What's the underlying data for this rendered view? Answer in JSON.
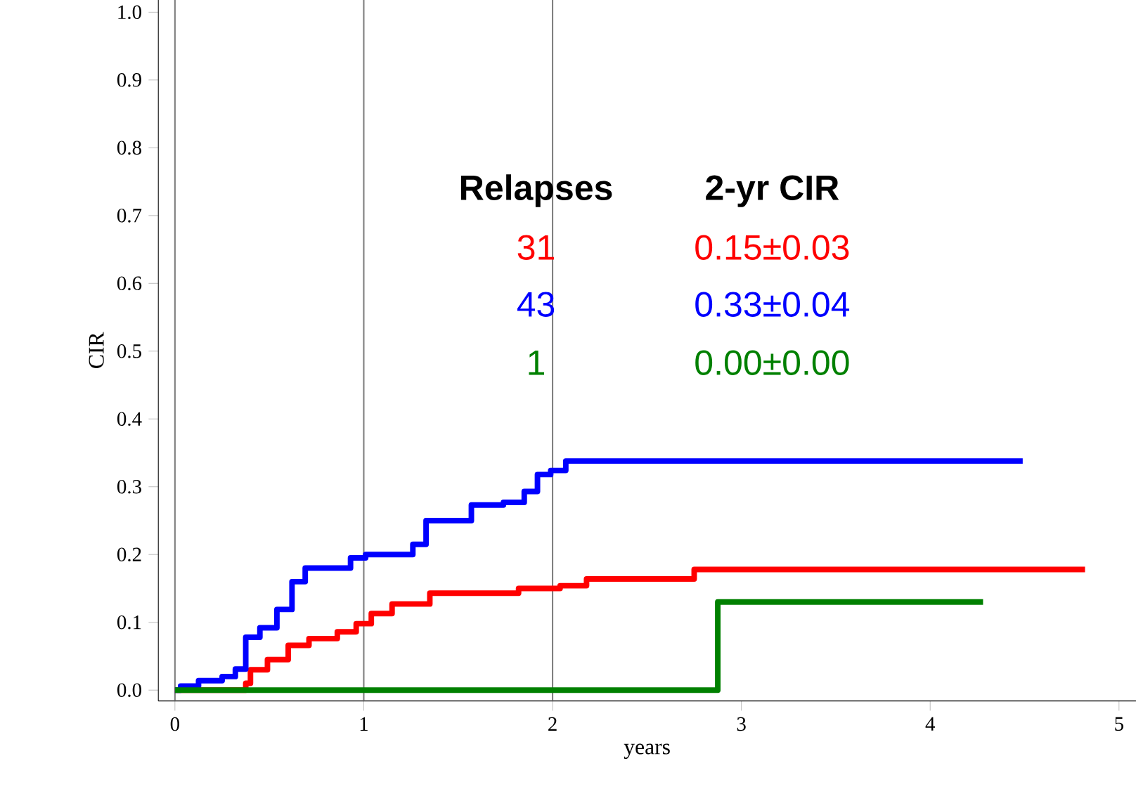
{
  "chart_data": {
    "type": "step",
    "xlabel": "years",
    "ylabel": "CIR",
    "xlim": [
      -0.088,
      5.09
    ],
    "ylim": [
      -0.016,
      1.018
    ],
    "xticks": [
      0,
      1,
      2,
      3,
      4,
      5
    ],
    "yticks": [
      {
        "value": 0,
        "label": "0.0"
      },
      {
        "value": 0.1,
        "label": "0.1"
      },
      {
        "value": 0.2,
        "label": "0.2"
      },
      {
        "value": 0.3,
        "label": "0.3"
      },
      {
        "value": 0.4,
        "label": "0.4"
      },
      {
        "value": 0.5,
        "label": "0.5"
      },
      {
        "value": 0.6,
        "label": "0.6"
      },
      {
        "value": 0.7,
        "label": "0.7"
      },
      {
        "value": 0.8,
        "label": "0.8"
      },
      {
        "value": 0.9,
        "label": "0.9"
      },
      {
        "value": 1.0,
        "label": "1.0"
      }
    ],
    "ref_lines": [
      {
        "axis": "x",
        "value": 0,
        "color": "#808080"
      },
      {
        "axis": "x",
        "value": 1,
        "color": "#808080"
      },
      {
        "axis": "x",
        "value": 2,
        "color": "#808080"
      }
    ],
    "series": [
      {
        "color": "#ff0000",
        "x": [
          0,
          0.1,
          0.375,
          0.4,
          0.49,
          0.6,
          0.71,
          0.86,
          0.96,
          1.04,
          1.15,
          1.3,
          1.35,
          1.6,
          1.82,
          2.04,
          2.18,
          2.75,
          4.82
        ],
        "values": [
          0,
          null,
          0.01,
          0.03,
          0.045,
          0.066,
          0.076,
          0.086,
          0.098,
          0.113,
          0.127,
          0.127,
          0.143,
          0.143,
          0.15,
          0.154,
          0.164,
          0.178,
          0.178
        ]
      },
      {
        "color": "#0000ff",
        "x": [
          0,
          0.03,
          0.125,
          0.25,
          0.32,
          0.375,
          0.45,
          0.54,
          0.62,
          0.69,
          0.86,
          0.93,
          1.01,
          1.18,
          1.26,
          1.33,
          1.48,
          1.57,
          1.74,
          1.85,
          1.92,
          1.99,
          2.07,
          4.49
        ],
        "values": [
          0,
          0.006,
          0.014,
          0.02,
          0.031,
          0.078,
          0.092,
          0.119,
          0.16,
          0.18,
          0.18,
          0.195,
          0.2,
          0.2,
          0.215,
          0.25,
          0.25,
          0.273,
          0.277,
          0.293,
          0.318,
          0.324,
          0.338,
          0.338
        ]
      },
      {
        "color": "#008000",
        "x": [
          0,
          2.875,
          4.28
        ],
        "values": [
          0,
          0.13,
          0.13
        ]
      }
    ],
    "annotations": [
      "Relapses",
      "2-yr  CIR",
      "31",
      "0.15±0.03",
      "43",
      "0.33±0.04",
      "1",
      "0.00±0.00"
    ]
  }
}
